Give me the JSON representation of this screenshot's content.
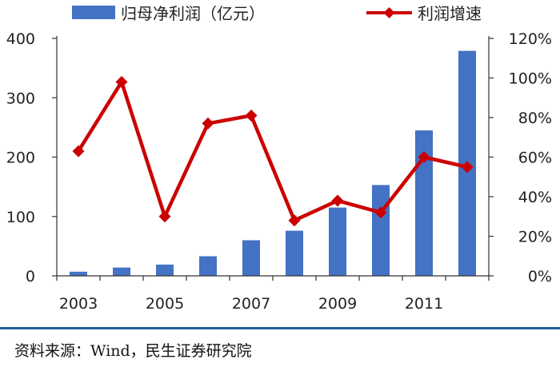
{
  "chart_data": {
    "type": "bar",
    "categories": [
      "2003",
      "2004",
      "2005",
      "2006",
      "2007",
      "2008",
      "2009",
      "2010",
      "2011",
      "2012"
    ],
    "x_tick_labels": [
      "2003",
      "2005",
      "2007",
      "2009",
      "2011"
    ],
    "series": [
      {
        "name": "归母净利润（亿元）",
        "type": "bar",
        "axis": "left",
        "color": "#4472c4",
        "values": [
          7,
          14,
          19,
          33,
          60,
          76,
          115,
          153,
          245,
          379
        ]
      },
      {
        "name": "利润增速",
        "type": "line",
        "axis": "right",
        "color": "#cc0000",
        "values": [
          0.63,
          0.98,
          0.3,
          0.77,
          0.81,
          0.28,
          0.38,
          0.32,
          0.6,
          0.55
        ]
      }
    ],
    "y_left": {
      "min": 0,
      "max": 400,
      "ticks": [
        "0",
        "100",
        "200",
        "300",
        "400"
      ]
    },
    "y_right": {
      "min": 0,
      "max": 1.2,
      "ticks": [
        "0%",
        "20%",
        "40%",
        "60%",
        "80%",
        "100%",
        "120%"
      ]
    },
    "legend_position": "top",
    "grid": false
  },
  "source_text": "资料来源：Wind，民生证券研究院"
}
